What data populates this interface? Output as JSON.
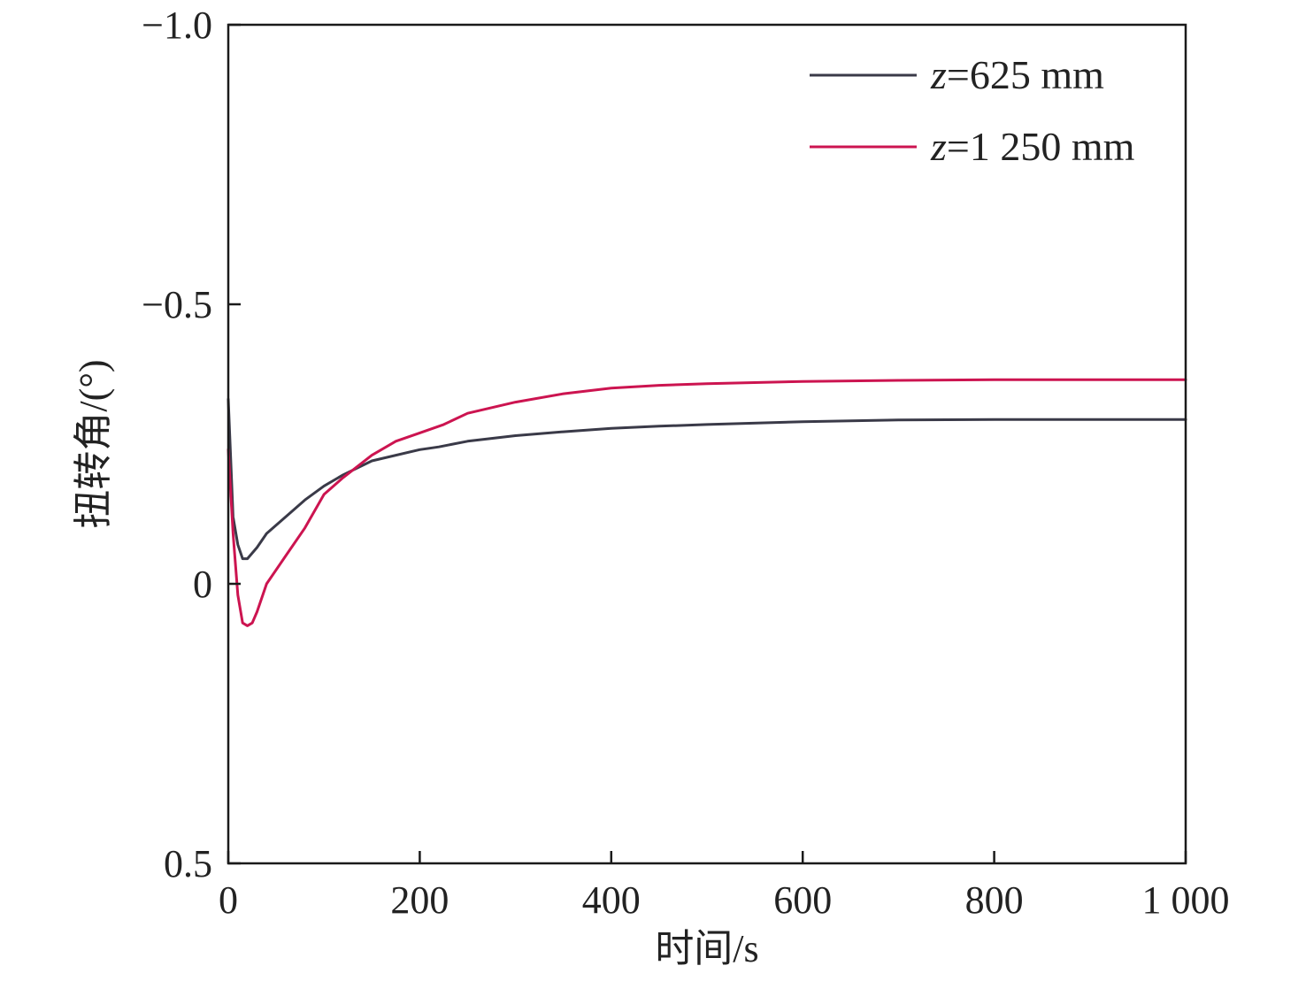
{
  "chart_data": {
    "type": "line",
    "xlabel": "时间/s",
    "ylabel": "扭转角/(°)",
    "xlim": [
      0,
      1000
    ],
    "ylim": [
      0.5,
      -1.0
    ],
    "y_inverted": true,
    "grid": false,
    "legend_position": "top-right",
    "x_ticks": [
      {
        "value": 0,
        "label": "0"
      },
      {
        "value": 200,
        "label": "200"
      },
      {
        "value": 400,
        "label": "400"
      },
      {
        "value": 600,
        "label": "600"
      },
      {
        "value": 800,
        "label": "800"
      },
      {
        "value": 1000,
        "label": "1 000"
      }
    ],
    "y_ticks": [
      {
        "value": -1.0,
        "label": "−1.0"
      },
      {
        "value": -0.5,
        "label": "−0.5"
      },
      {
        "value": 0,
        "label": "0"
      },
      {
        "value": 0.5,
        "label": "0.5"
      }
    ],
    "series": [
      {
        "name_italic": "z",
        "name_rest": "=625 mm",
        "color": "#3a3a48",
        "x": [
          0,
          5,
          10,
          15,
          20,
          30,
          40,
          60,
          80,
          100,
          120,
          150,
          200,
          220,
          250,
          300,
          350,
          400,
          450,
          500,
          600,
          700,
          800,
          900,
          1000
        ],
        "y": [
          -0.33,
          -0.12,
          -0.07,
          -0.045,
          -0.045,
          -0.065,
          -0.09,
          -0.12,
          -0.15,
          -0.175,
          -0.195,
          -0.22,
          -0.24,
          -0.245,
          -0.255,
          -0.265,
          -0.272,
          -0.278,
          -0.282,
          -0.285,
          -0.29,
          -0.293,
          -0.294,
          -0.294,
          -0.294
        ]
      },
      {
        "name_italic": "z",
        "name_rest": "=1 250 mm",
        "color": "#cc1450",
        "x": [
          0,
          5,
          10,
          15,
          20,
          25,
          30,
          40,
          60,
          80,
          100,
          120,
          150,
          175,
          200,
          225,
          250,
          300,
          350,
          400,
          450,
          500,
          600,
          700,
          800,
          900,
          1000
        ],
        "y": [
          -0.24,
          -0.09,
          0.02,
          0.07,
          0.075,
          0.07,
          0.05,
          0.0,
          -0.05,
          -0.1,
          -0.16,
          -0.19,
          -0.23,
          -0.255,
          -0.27,
          -0.285,
          -0.305,
          -0.325,
          -0.34,
          -0.35,
          -0.355,
          -0.358,
          -0.362,
          -0.364,
          -0.365,
          -0.365,
          -0.365
        ]
      }
    ]
  }
}
